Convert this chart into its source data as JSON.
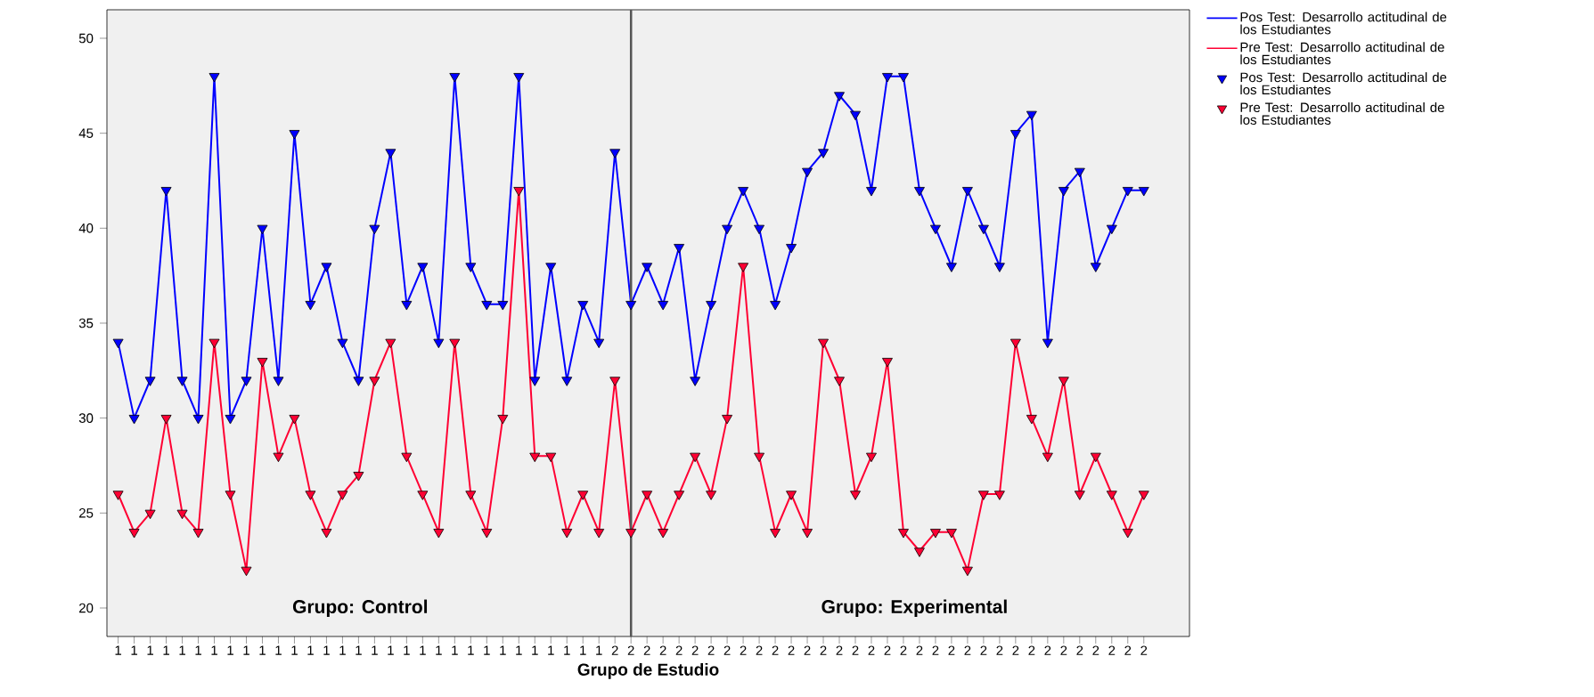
{
  "chart_data": {
    "type": "line",
    "xlabel": "Grupo de Estudio",
    "categories": [
      "1",
      "1",
      "1",
      "1",
      "1",
      "1",
      "1",
      "1",
      "1",
      "1",
      "1",
      "1",
      "1",
      "1",
      "1",
      "1",
      "1",
      "1",
      "1",
      "1",
      "1",
      "1",
      "1",
      "1",
      "1",
      "1",
      "1",
      "1",
      "1",
      "1",
      "1",
      "2",
      "2",
      "2",
      "2",
      "2",
      "2",
      "2",
      "2",
      "2",
      "2",
      "2",
      "2",
      "2",
      "2",
      "2",
      "2",
      "2",
      "2",
      "2",
      "2",
      "2",
      "2",
      "2",
      "2",
      "2",
      "2",
      "2",
      "2",
      "2",
      "2",
      "2",
      "2",
      "2",
      "2"
    ],
    "series": [
      {
        "name": "Pos Test: Desarrollo actitudinal de los Estudiantes",
        "color": "#0000ff",
        "values": [
          34,
          30,
          32,
          42,
          32,
          30,
          48,
          30,
          32,
          40,
          32,
          45,
          36,
          38,
          34,
          32,
          40,
          44,
          36,
          38,
          34,
          48,
          38,
          36,
          36,
          48,
          32,
          38,
          32,
          36,
          34,
          44,
          36,
          38,
          36,
          39,
          32,
          36,
          40,
          42,
          40,
          36,
          39,
          43,
          44,
          47,
          46,
          42,
          48,
          48,
          42,
          40,
          38,
          42,
          40,
          38,
          45,
          46,
          34,
          42,
          43,
          38,
          40,
          42,
          42
        ]
      },
      {
        "name": "Pre Test: Desarrollo actitudinal de los Estudiantes",
        "color": "#ff0033",
        "values": [
          26,
          24,
          25,
          30,
          25,
          24,
          34,
          26,
          22,
          33,
          28,
          30,
          26,
          24,
          26,
          27,
          32,
          34,
          28,
          26,
          24,
          34,
          26,
          24,
          30,
          42,
          28,
          28,
          24,
          26,
          24,
          32,
          24,
          26,
          24,
          26,
          28,
          26,
          30,
          38,
          28,
          24,
          26,
          24,
          34,
          32,
          26,
          28,
          33,
          24,
          23,
          24,
          24,
          22,
          26,
          26,
          34,
          30,
          28,
          32,
          26,
          28,
          26,
          24,
          26
        ]
      }
    ],
    "ylim": [
      18.5,
      51.5
    ],
    "yticks": [
      20,
      25,
      30,
      35,
      40,
      45,
      50
    ],
    "marker": "triangle",
    "legend": "right",
    "annotations": [
      "Grupo: Control",
      "Grupo: Experimental"
    ]
  }
}
